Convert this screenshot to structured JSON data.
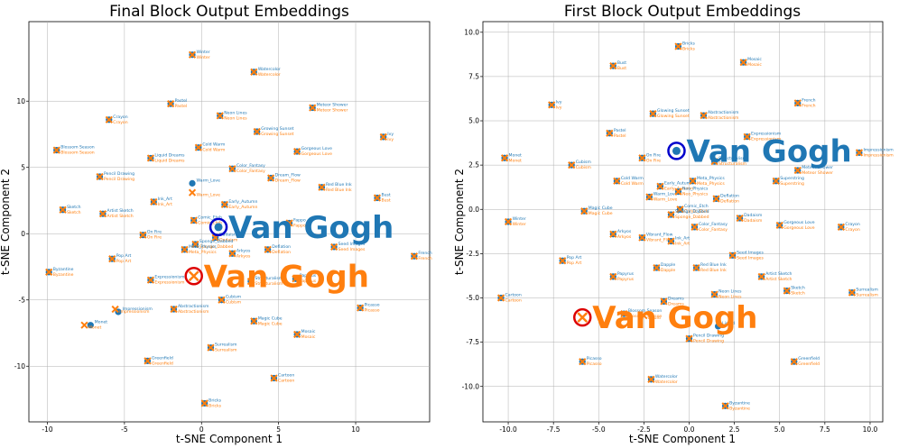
{
  "colors": {
    "blue": "#1f77b4",
    "orange": "#ff7f0e",
    "grid": "#b0b0b0",
    "ring_blue": "#0000cc",
    "ring_red": "#dd0000"
  },
  "chart_data": [
    {
      "type": "scatter",
      "title": "Final Block Output Embeddings",
      "xlabel": "t-SNE Component 1",
      "ylabel": "t-SNE Component 2",
      "xlim": [
        -11.2,
        14.8
      ],
      "ylim": [
        -14.2,
        16.0
      ],
      "xticks": [
        -10,
        -5,
        0,
        5,
        10
      ],
      "yticks": [
        -10,
        -5,
        0,
        5,
        10
      ],
      "grid": true,
      "highlight": {
        "label": "Van Gogh",
        "blue": {
          "x": 1.1,
          "y": 0.5
        },
        "orange": {
          "x": -0.5,
          "y": -3.2
        }
      },
      "points": [
        {
          "label": "Winter",
          "b": [
            -0.6,
            13.5
          ],
          "o": [
            -0.6,
            13.5
          ]
        },
        {
          "label": "Watercolor",
          "b": [
            3.4,
            12.2
          ],
          "o": [
            3.4,
            12.2
          ]
        },
        {
          "label": "Pastel",
          "b": [
            -2.0,
            9.8
          ],
          "o": [
            -2.0,
            9.8
          ]
        },
        {
          "label": "Crayon",
          "b": [
            -6.0,
            8.6
          ],
          "o": [
            -6.0,
            8.6
          ]
        },
        {
          "label": "Neon Lines",
          "b": [
            1.2,
            8.9
          ],
          "o": [
            1.2,
            8.9
          ]
        },
        {
          "label": "Meteor Shower",
          "b": [
            7.2,
            9.5
          ],
          "o": [
            7.2,
            9.5
          ]
        },
        {
          "label": "Growing Sunset",
          "b": [
            3.6,
            7.7
          ],
          "o": [
            3.6,
            7.7
          ]
        },
        {
          "label": "Ivy",
          "b": [
            11.8,
            7.3
          ],
          "o": [
            11.8,
            7.3
          ]
        },
        {
          "label": "Blossom Season",
          "b": [
            -9.4,
            6.3
          ],
          "o": [
            -9.4,
            6.3
          ]
        },
        {
          "label": "Liquid Dreams",
          "b": [
            -3.3,
            5.7
          ],
          "o": [
            -3.3,
            5.7
          ]
        },
        {
          "label": "Cold Warm",
          "b": [
            -0.2,
            6.5
          ],
          "o": [
            -0.2,
            6.5
          ]
        },
        {
          "label": "Gorgeous Love",
          "b": [
            6.2,
            6.2
          ],
          "o": [
            6.2,
            6.2
          ]
        },
        {
          "label": "Pencil Drawing",
          "b": [
            -6.6,
            4.3
          ],
          "o": [
            -6.6,
            4.3
          ]
        },
        {
          "label": "Warm_Love",
          "b": [
            -0.6,
            3.8
          ],
          "o": [
            -0.6,
            3.1
          ]
        },
        {
          "label": "Color_Fantasy",
          "b": [
            2.0,
            4.9
          ],
          "o": [
            2.0,
            4.9
          ]
        },
        {
          "label": "Dream_Flow",
          "b": [
            4.5,
            4.2
          ],
          "o": [
            4.5,
            4.2
          ]
        },
        {
          "label": "Red Blue Ink",
          "b": [
            7.8,
            3.5
          ],
          "o": [
            7.8,
            3.5
          ]
        },
        {
          "label": "Bust",
          "b": [
            11.4,
            2.7
          ],
          "o": [
            11.4,
            2.7
          ]
        },
        {
          "label": "Sketch",
          "b": [
            -9.0,
            1.8
          ],
          "o": [
            -9.0,
            1.8
          ]
        },
        {
          "label": "Artist Sketch",
          "b": [
            -6.4,
            1.5
          ],
          "o": [
            -6.4,
            1.5
          ]
        },
        {
          "label": "Ink_Art",
          "b": [
            -3.1,
            2.4
          ],
          "o": [
            -3.1,
            2.4
          ]
        },
        {
          "label": "Early_Autumn",
          "b": [
            1.5,
            2.2
          ],
          "o": [
            1.5,
            2.2
          ]
        },
        {
          "label": "Comic_Etch",
          "b": [
            -0.5,
            1.0
          ],
          "o": [
            -0.5,
            1.0
          ]
        },
        {
          "label": "Fappo",
          "b": [
            5.7,
            0.8
          ],
          "o": [
            5.7,
            0.8
          ]
        },
        {
          "label": "On Fire",
          "b": [
            -3.8,
            -0.1
          ],
          "o": [
            -3.8,
            -0.1
          ]
        },
        {
          "label": "Dadaism",
          "b": [
            0.9,
            -0.3
          ],
          "o": [
            0.9,
            -0.3
          ]
        },
        {
          "label": "Sponge_Dabbed",
          "b": [
            -0.4,
            -0.8
          ],
          "o": [
            -0.4,
            -0.8
          ]
        },
        {
          "label": "Meta_Physics",
          "b": [
            -1.1,
            -1.2
          ],
          "o": [
            -1.1,
            -1.2
          ]
        },
        {
          "label": "Arkyos",
          "b": [
            2.0,
            -1.5
          ],
          "o": [
            2.0,
            -1.5
          ]
        },
        {
          "label": "Deflation",
          "b": [
            4.3,
            -1.2
          ],
          "o": [
            4.3,
            -1.2
          ]
        },
        {
          "label": "Seed Images",
          "b": [
            8.6,
            -1.0
          ],
          "o": [
            8.6,
            -1.0
          ]
        },
        {
          "label": "French",
          "b": [
            13.8,
            -1.7
          ],
          "o": [
            13.8,
            -1.7
          ]
        },
        {
          "label": "Pop Art",
          "b": [
            -5.8,
            -1.9
          ],
          "o": [
            -5.8,
            -1.9
          ]
        },
        {
          "label": "Byzantine",
          "b": [
            -9.9,
            -2.9
          ],
          "o": [
            -9.9,
            -2.9
          ]
        },
        {
          "label": "Expressionism",
          "b": [
            -3.3,
            -3.5
          ],
          "o": [
            -3.3,
            -3.5
          ]
        },
        {
          "label": "Structuralism",
          "b": [
            3.2,
            -3.6
          ],
          "o": [
            3.2,
            -3.6
          ]
        },
        {
          "label": "Papyrus",
          "b": [
            6.1,
            -3.4
          ],
          "o": [
            6.1,
            -3.4
          ]
        },
        {
          "label": "Cubism",
          "b": [
            1.3,
            -5.0
          ],
          "o": [
            1.3,
            -5.0
          ]
        },
        {
          "label": "Abstractionism",
          "b": [
            -1.8,
            -5.7
          ],
          "o": [
            -1.8,
            -5.7
          ]
        },
        {
          "label": "Impressionism",
          "b": [
            -5.4,
            -5.9
          ],
          "o": [
            -5.6,
            -5.7
          ]
        },
        {
          "label": "Picasso",
          "b": [
            10.3,
            -5.6
          ],
          "o": [
            10.3,
            -5.6
          ]
        },
        {
          "label": "Magic Cube",
          "b": [
            3.4,
            -6.6
          ],
          "o": [
            3.4,
            -6.6
          ]
        },
        {
          "label": "Monet",
          "b": [
            -7.2,
            -6.9
          ],
          "o": [
            -7.6,
            -6.9
          ]
        },
        {
          "label": "Mosaic",
          "b": [
            6.2,
            -7.6
          ],
          "o": [
            6.2,
            -7.6
          ]
        },
        {
          "label": "Surrealism",
          "b": [
            0.6,
            -8.6
          ],
          "o": [
            0.6,
            -8.6
          ]
        },
        {
          "label": "Greenfield",
          "b": [
            -3.5,
            -9.6
          ],
          "o": [
            -3.5,
            -9.6
          ]
        },
        {
          "label": "Cartoon",
          "b": [
            4.7,
            -10.9
          ],
          "o": [
            4.7,
            -10.9
          ]
        },
        {
          "label": "Bricks",
          "b": [
            0.2,
            -12.8
          ],
          "o": [
            0.2,
            -12.8
          ]
        }
      ]
    },
    {
      "type": "scatter",
      "title": "First Block Output Embeddings",
      "xlabel": "t-SNE Component 1",
      "ylabel": "t-SNE Component 2",
      "xlim": [
        -11.4,
        10.7
      ],
      "ylim": [
        -12.0,
        10.6
      ],
      "xticks": [
        -10.0,
        -7.5,
        -5.0,
        -2.5,
        0.0,
        2.5,
        5.0,
        7.5,
        10.0
      ],
      "yticks": [
        -10.0,
        -7.5,
        -5.0,
        -2.5,
        0.0,
        2.5,
        5.0,
        7.5,
        10.0
      ],
      "grid": true,
      "highlight": {
        "label": "Van Gogh",
        "blue": {
          "x": -0.7,
          "y": 3.3
        },
        "orange": {
          "x": -5.9,
          "y": -6.1
        }
      },
      "points": [
        {
          "label": "Bricks",
          "b": [
            -0.6,
            9.2
          ],
          "o": [
            -0.6,
            9.2
          ]
        },
        {
          "label": "Bust",
          "b": [
            -4.2,
            8.1
          ],
          "o": [
            -4.2,
            8.1
          ]
        },
        {
          "label": "Mosaic",
          "b": [
            3.0,
            8.3
          ],
          "o": [
            3.0,
            8.3
          ]
        },
        {
          "label": "French",
          "b": [
            6.0,
            6.0
          ],
          "o": [
            6.0,
            6.0
          ]
        },
        {
          "label": "Ivy",
          "b": [
            -7.6,
            5.9
          ],
          "o": [
            -7.6,
            5.9
          ]
        },
        {
          "label": "Glowing Sunset",
          "b": [
            -2.0,
            5.4
          ],
          "o": [
            -2.0,
            5.4
          ]
        },
        {
          "label": "Abstractionism",
          "b": [
            0.8,
            5.3
          ],
          "o": [
            0.8,
            5.3
          ]
        },
        {
          "label": "Pastel",
          "b": [
            -4.4,
            4.3
          ],
          "o": [
            -4.4,
            4.3
          ]
        },
        {
          "label": "Expressionism",
          "b": [
            3.2,
            4.1
          ],
          "o": [
            3.2,
            4.1
          ]
        },
        {
          "label": "On Fire",
          "b": [
            -2.6,
            2.9
          ],
          "o": [
            -2.6,
            2.9
          ]
        },
        {
          "label": "Structuralism",
          "b": [
            1.4,
            2.7
          ],
          "o": [
            1.4,
            2.7
          ]
        },
        {
          "label": "Monet",
          "b": [
            -10.2,
            2.9
          ],
          "o": [
            -10.2,
            2.9
          ]
        },
        {
          "label": "Cubism",
          "b": [
            -6.5,
            2.5
          ],
          "o": [
            -6.5,
            2.5
          ]
        },
        {
          "label": "Impressionism",
          "b": [
            9.4,
            3.2
          ],
          "o": [
            9.4,
            3.2
          ]
        },
        {
          "label": "Meteor Shower",
          "b": [
            6.0,
            2.2
          ],
          "o": [
            6.0,
            2.2
          ]
        },
        {
          "label": "Cold Warm",
          "b": [
            -4.0,
            1.6
          ],
          "o": [
            -4.0,
            1.6
          ]
        },
        {
          "label": "Early_Autumn",
          "b": [
            -1.6,
            1.3
          ],
          "o": [
            -1.6,
            1.3
          ]
        },
        {
          "label": "Meta_Physics",
          "b": [
            0.2,
            1.6
          ],
          "o": [
            0.2,
            1.6
          ]
        },
        {
          "label": "Superstring",
          "b": [
            4.8,
            1.6
          ],
          "o": [
            4.8,
            1.6
          ]
        },
        {
          "label": "Warm_Love",
          "b": [
            -2.2,
            0.7
          ],
          "o": [
            -2.2,
            0.7
          ]
        },
        {
          "label": "Neo_Physics",
          "b": [
            -0.6,
            1.0
          ],
          "o": [
            -0.6,
            1.0
          ]
        },
        {
          "label": "Deflation",
          "b": [
            1.5,
            0.6
          ],
          "o": [
            1.5,
            0.6
          ]
        },
        {
          "label": "Comic_Etch",
          "b": [
            -0.5,
            0.0
          ],
          "o": [
            -0.5,
            0.0
          ]
        },
        {
          "label": "Sponge_Dabbed",
          "b": [
            -1.0,
            -0.3
          ],
          "o": [
            -1.0,
            -0.3
          ]
        },
        {
          "label": "Magic Cube",
          "b": [
            -5.8,
            -0.1
          ],
          "o": [
            -5.8,
            -0.1
          ]
        },
        {
          "label": "Dadaism",
          "b": [
            2.8,
            -0.5
          ],
          "o": [
            2.8,
            -0.5
          ]
        },
        {
          "label": "Winter",
          "b": [
            -10.0,
            -0.7
          ],
          "o": [
            -10.0,
            -0.7
          ]
        },
        {
          "label": "Color_Fantasy",
          "b": [
            0.3,
            -1.0
          ],
          "o": [
            0.3,
            -1.0
          ]
        },
        {
          "label": "Gorgeous Love",
          "b": [
            5.0,
            -0.9
          ],
          "o": [
            5.0,
            -0.9
          ]
        },
        {
          "label": "Crayon",
          "b": [
            8.4,
            -1.0
          ],
          "o": [
            8.4,
            -1.0
          ]
        },
        {
          "label": "Arkyos",
          "b": [
            -4.2,
            -1.4
          ],
          "o": [
            -4.2,
            -1.4
          ]
        },
        {
          "label": "Vibrant_Flow",
          "b": [
            -2.6,
            -1.6
          ],
          "o": [
            -2.6,
            -1.6
          ]
        },
        {
          "label": "Ink_Art",
          "b": [
            -1.0,
            -1.8
          ],
          "o": [
            -1.0,
            -1.8
          ]
        },
        {
          "label": "Seed Images",
          "b": [
            2.4,
            -2.6
          ],
          "o": [
            2.4,
            -2.6
          ]
        },
        {
          "label": "Pop Art",
          "b": [
            -7.0,
            -2.9
          ],
          "o": [
            -7.0,
            -2.9
          ]
        },
        {
          "label": "Dapple",
          "b": [
            -1.8,
            -3.3
          ],
          "o": [
            -1.8,
            -3.3
          ]
        },
        {
          "label": "Red Blue Ink",
          "b": [
            0.4,
            -3.3
          ],
          "o": [
            0.4,
            -3.3
          ]
        },
        {
          "label": "Papyrus",
          "b": [
            -4.2,
            -3.8
          ],
          "o": [
            -4.2,
            -3.8
          ]
        },
        {
          "label": "Artist Sketch",
          "b": [
            4.0,
            -3.8
          ],
          "o": [
            4.0,
            -3.8
          ]
        },
        {
          "label": "Sketch",
          "b": [
            5.4,
            -4.6
          ],
          "o": [
            5.4,
            -4.6
          ]
        },
        {
          "label": "Surrealism",
          "b": [
            9.0,
            -4.7
          ],
          "o": [
            9.0,
            -4.7
          ]
        },
        {
          "label": "Cartoon",
          "b": [
            -10.4,
            -5.0
          ],
          "o": [
            -10.4,
            -5.0
          ]
        },
        {
          "label": "Neon Lines",
          "b": [
            1.4,
            -4.8
          ],
          "o": [
            1.4,
            -4.8
          ]
        },
        {
          "label": "Dreams",
          "b": [
            -1.4,
            -5.2
          ],
          "o": [
            -1.4,
            -5.2
          ]
        },
        {
          "label": "Blossom Season",
          "b": [
            -3.6,
            -5.9
          ],
          "o": [
            -3.6,
            -5.9
          ]
        },
        {
          "label": "Liquid",
          "b": [
            1.6,
            -6.6
          ],
          "o": [
            -2.5,
            -6.0
          ]
        },
        {
          "label": "Pencil Drawing",
          "b": [
            0.0,
            -7.3
          ],
          "o": [
            0.0,
            -7.3
          ]
        },
        {
          "label": "Picasso",
          "b": [
            -5.9,
            -8.6
          ],
          "o": [
            -5.9,
            -8.6
          ]
        },
        {
          "label": "Greenfield",
          "b": [
            5.8,
            -8.6
          ],
          "o": [
            5.8,
            -8.6
          ]
        },
        {
          "label": "Watercolor",
          "b": [
            -2.1,
            -9.6
          ],
          "o": [
            -2.1,
            -9.6
          ]
        },
        {
          "label": "Byzantine",
          "b": [
            2.0,
            -11.1
          ],
          "o": [
            2.0,
            -11.1
          ]
        }
      ]
    }
  ]
}
